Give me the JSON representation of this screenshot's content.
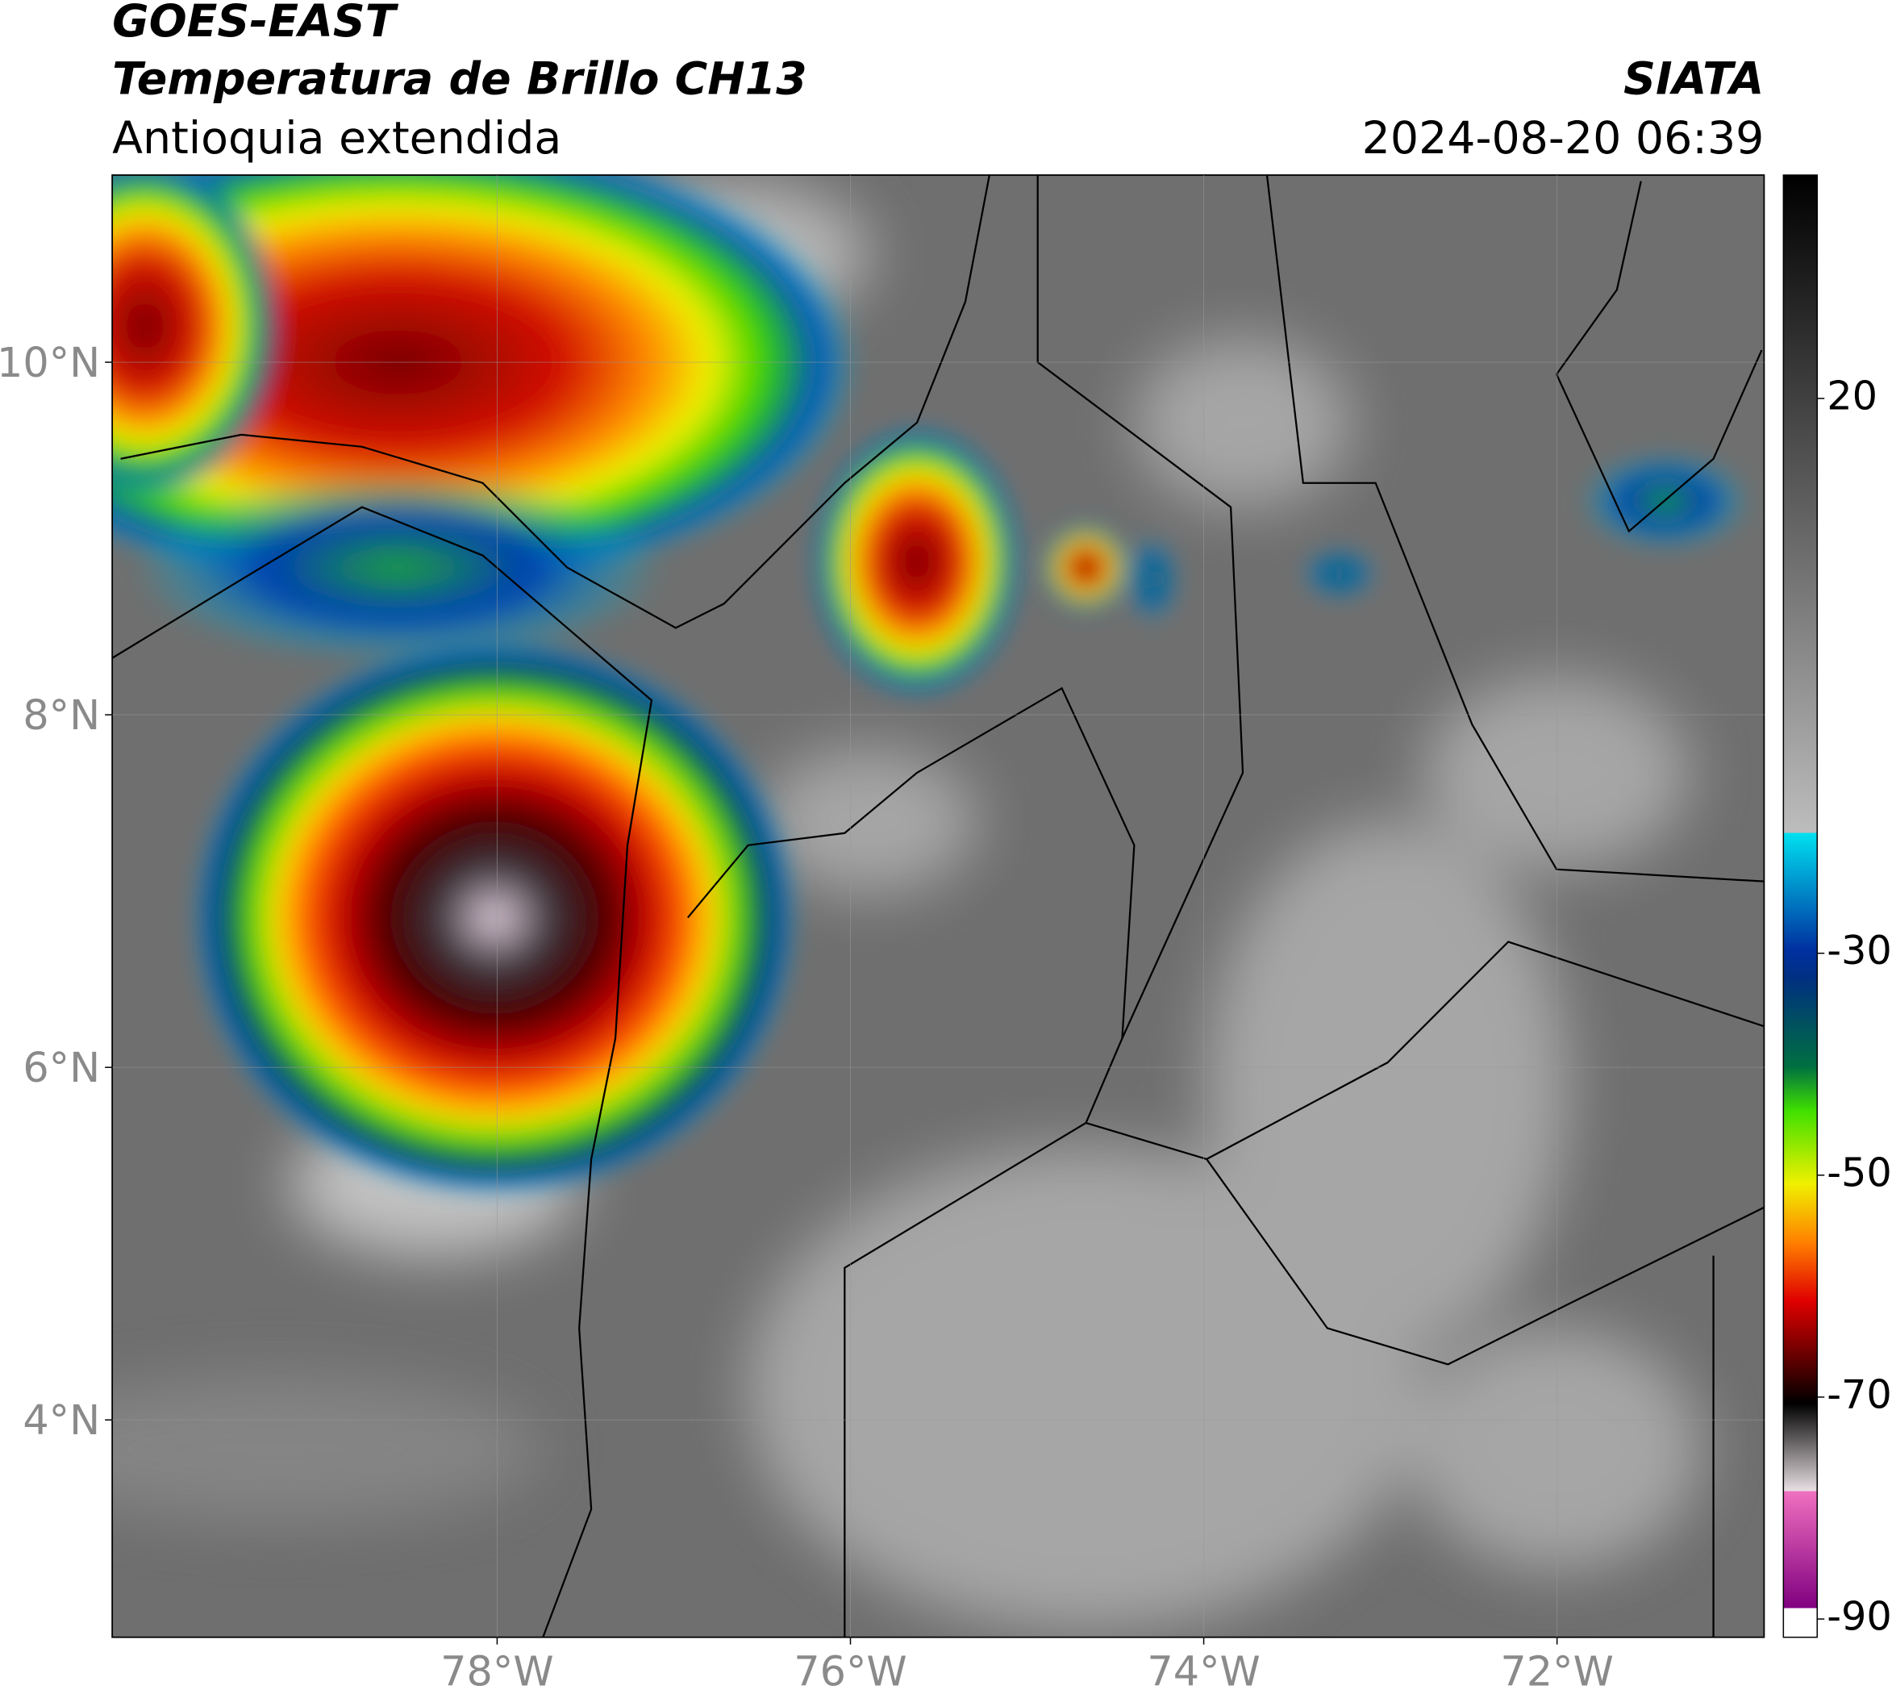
{
  "header": {
    "title": "GOES-EAST",
    "subtitle": "Temperatura de Brillo CH13",
    "region": "Antioquia extendida",
    "source": "SIATA",
    "timestamp": "2024-08-20 06:39"
  },
  "map": {
    "lat_ticks": [
      {
        "value": 10,
        "label": "10°N"
      },
      {
        "value": 8,
        "label": "8°N"
      },
      {
        "value": 6,
        "label": "6°N"
      },
      {
        "value": 4,
        "label": "4°N"
      }
    ],
    "lon_ticks": [
      {
        "value": -78,
        "label": "78°W"
      },
      {
        "value": -76,
        "label": "76°W"
      },
      {
        "value": -74,
        "label": "74°W"
      },
      {
        "value": -72,
        "label": "72°W"
      }
    ],
    "grid": true
  },
  "colorbar": {
    "ticks": [
      20,
      -30,
      -50,
      -70,
      -90
    ]
  }
}
